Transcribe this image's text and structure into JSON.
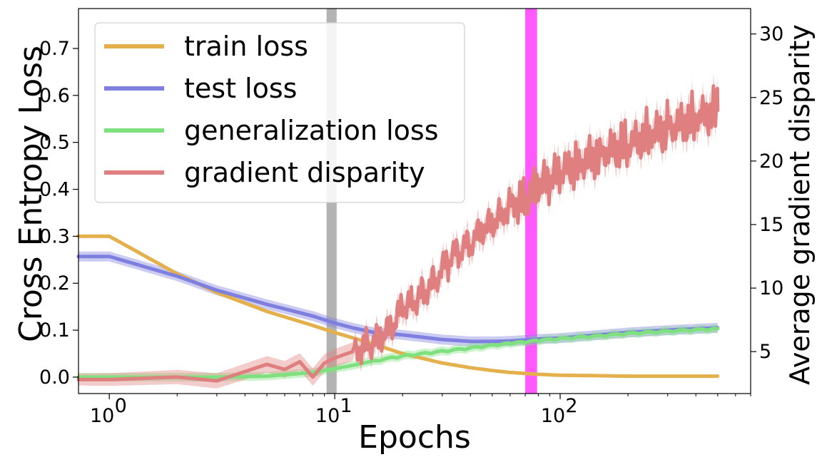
{
  "chart_data": {
    "type": "line",
    "title": "",
    "xlabel": "Epochs",
    "ylabel": "Cross Entropy Loss",
    "y2label": "Average gradient disparity",
    "xscale": "log",
    "xlim": [
      0.73,
      700
    ],
    "ylim": [
      -0.035,
      0.785
    ],
    "y2lim": [
      1.7,
      32
    ],
    "xticks": [
      {
        "value": 1,
        "base": "10",
        "exp": "0"
      },
      {
        "value": 10,
        "base": "10",
        "exp": "1"
      },
      {
        "value": 100,
        "base": "10",
        "exp": "2"
      }
    ],
    "yticks": [
      "0.0",
      "0.1",
      "0.2",
      "0.3",
      "0.4",
      "0.5",
      "0.6",
      "0.7"
    ],
    "y2ticks": [
      "5",
      "10",
      "15",
      "20",
      "25",
      "30"
    ],
    "legend_position": "top-left",
    "grid": false,
    "shaded_regions": [
      {
        "x_start": 9.2,
        "x_end": 10.2,
        "color": "#808080",
        "opacity": 0.6
      },
      {
        "x_start": 70,
        "x_end": 79,
        "color": "#ff00ff",
        "opacity": 0.65
      }
    ],
    "series": [
      {
        "name": "train loss",
        "axis": "left",
        "color": "#e3b04b",
        "x": [
          0.73,
          1,
          2,
          3,
          5,
          8,
          10,
          15,
          20,
          30,
          40,
          50,
          60,
          70,
          80,
          100,
          150,
          200,
          300,
          500
        ],
        "y": [
          0.3,
          0.3,
          0.22,
          0.18,
          0.14,
          0.11,
          0.095,
          0.07,
          0.05,
          0.03,
          0.02,
          0.014,
          0.01,
          0.008,
          0.006,
          0.004,
          0.003,
          0.002,
          0.002,
          0.002
        ]
      },
      {
        "name": "test loss",
        "axis": "left",
        "color": "#7f7fe0",
        "x": [
          0.73,
          1,
          2,
          3,
          5,
          8,
          10,
          12,
          15,
          20,
          30,
          40,
          50,
          60,
          70,
          80,
          100,
          150,
          200,
          300,
          500
        ],
        "y": [
          0.257,
          0.257,
          0.215,
          0.185,
          0.155,
          0.13,
          0.115,
          0.105,
          0.095,
          0.09,
          0.08,
          0.076,
          0.076,
          0.077,
          0.079,
          0.081,
          0.083,
          0.09,
          0.095,
          0.1,
          0.105
        ]
      },
      {
        "name": "generalization loss",
        "axis": "left",
        "color": "#7fe07f",
        "x": [
          0.73,
          1,
          2,
          3,
          5,
          8,
          10,
          12,
          15,
          20,
          30,
          40,
          50,
          60,
          70,
          80,
          100,
          150,
          200,
          300,
          500
        ],
        "y": [
          0.0,
          0.0,
          0.0,
          0.0,
          0.002,
          0.01,
          0.018,
          0.025,
          0.035,
          0.045,
          0.055,
          0.062,
          0.068,
          0.072,
          0.075,
          0.078,
          0.082,
          0.088,
          0.093,
          0.098,
          0.103
        ]
      },
      {
        "name": "gradient disparity",
        "axis": "right",
        "color": "#e07f7f",
        "x": [
          0.73,
          1,
          2,
          3,
          5,
          6,
          7,
          8,
          9,
          10,
          12,
          14,
          16,
          18,
          20,
          22,
          25,
          28,
          32,
          36,
          40,
          45,
          50,
          55,
          60,
          70,
          80,
          90,
          100,
          120,
          150,
          200,
          250,
          300,
          400,
          500
        ],
        "y": [
          2.8,
          2.8,
          3.0,
          2.7,
          4.0,
          3.6,
          4.2,
          3.0,
          4.1,
          4.5,
          5.0,
          5.4,
          6.0,
          6.9,
          8.5,
          8.7,
          9.7,
          10.6,
          12.2,
          13.0,
          13.5,
          14.5,
          15.0,
          15.8,
          16.4,
          17.0,
          18.0,
          18.6,
          19.2,
          19.8,
          20.6,
          21.4,
          22.1,
          22.6,
          23.4,
          24.0
        ]
      }
    ]
  }
}
